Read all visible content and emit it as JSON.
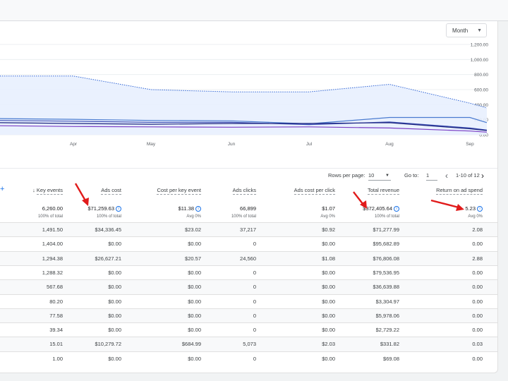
{
  "controls": {
    "period": "Month"
  },
  "chart_data": {
    "type": "line",
    "x": [
      "Apr",
      "May",
      "Jun",
      "Jul",
      "Aug",
      "Sep"
    ],
    "ytick_labels": [
      "1,200.00",
      "1,000.00",
      "800.00",
      "600.00",
      "400.00",
      "200.00",
      "0.00"
    ],
    "yticks": [
      1200,
      1000,
      800,
      600,
      400,
      200,
      0
    ],
    "ylim": [
      0,
      1200
    ],
    "grid": true,
    "series": [
      {
        "values": [
          780,
          600,
          570,
          570,
          670,
          420
        ],
        "style": "dotted-area",
        "color": "#3367d6"
      },
      {
        "values": [
          205,
          190,
          185,
          145,
          230,
          230
        ],
        "color": "#4a7bd0"
      },
      {
        "values": [
          180,
          165,
          165,
          135,
          170,
          90
        ],
        "color": "#3f51b5"
      },
      {
        "values": [
          150,
          140,
          150,
          150,
          160,
          80
        ],
        "color": "#1a237e"
      },
      {
        "values": [
          110,
          105,
          100,
          105,
          90,
          50
        ],
        "color": "#7b3fc4"
      }
    ]
  },
  "pagination": {
    "rows_per_page_label": "Rows per page:",
    "rows_per_page": "10",
    "goto_label": "Go to:",
    "goto_value": "1",
    "range": "1-10 of 12"
  },
  "table": {
    "columns": [
      "Key events",
      "Ads cost",
      "Cost per key event",
      "Ads clicks",
      "Ads cost per click",
      "Total revenue",
      "Return on ad spend"
    ],
    "totals": [
      "6,260.00",
      "$71,259.63",
      "$11.38",
      "66,899",
      "$1.07",
      "$372,405.64",
      "5.23"
    ],
    "totals_sub": [
      "100% of total",
      "100% of total",
      "Avg 0%",
      "100% of total",
      "Avg 0%",
      "100% of total",
      "Avg 0%"
    ],
    "rows": [
      [
        "1,491.50",
        "$34,336.45",
        "$23.02",
        "37,217",
        "$0.92",
        "$71,277.99",
        "2.08"
      ],
      [
        "1,404.00",
        "$0.00",
        "$0.00",
        "0",
        "$0.00",
        "$95,682.89",
        "0.00"
      ],
      [
        "1,294.38",
        "$26,627.21",
        "$20.57",
        "24,560",
        "$1.08",
        "$76,806.08",
        "2.88"
      ],
      [
        "1,288.32",
        "$0.00",
        "$0.00",
        "0",
        "$0.00",
        "$79,536.95",
        "0.00"
      ],
      [
        "567.68",
        "$0.00",
        "$0.00",
        "0",
        "$0.00",
        "$36,639.88",
        "0.00"
      ],
      [
        "80.20",
        "$0.00",
        "$0.00",
        "0",
        "$0.00",
        "$3,304.97",
        "0.00"
      ],
      [
        "77.58",
        "$0.00",
        "$0.00",
        "0",
        "$0.00",
        "$5,978.06",
        "0.00"
      ],
      [
        "39.34",
        "$0.00",
        "$0.00",
        "0",
        "$0.00",
        "$2,729.22",
        "0.00"
      ],
      [
        "15.01",
        "$10,279.72",
        "$684.99",
        "5,073",
        "$2.03",
        "$331.82",
        "0.03"
      ],
      [
        "1.00",
        "$0.00",
        "$0.00",
        "0",
        "$0.00",
        "$69.08",
        "0.00"
      ]
    ]
  }
}
